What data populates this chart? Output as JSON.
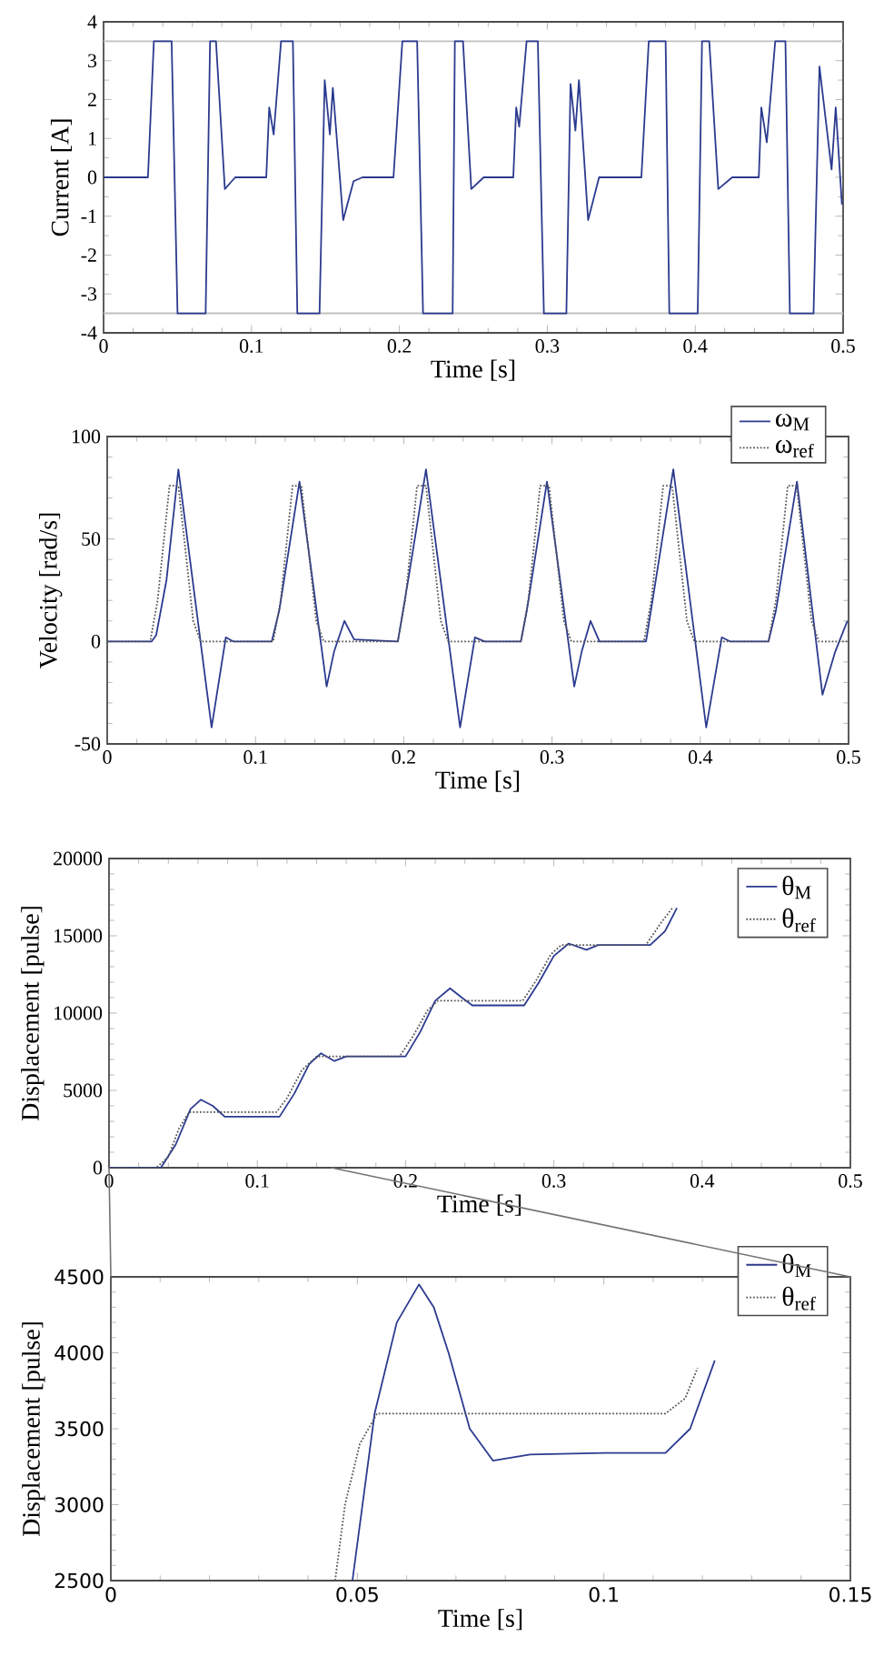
{
  "chart_data": [
    {
      "type": "line",
      "xlabel": "Time [s]",
      "ylabel": "Current [A]",
      "xlim": [
        0,
        0.5
      ],
      "ylim": [
        -4,
        4
      ],
      "xticks": [
        0,
        0.1,
        0.2,
        0.3,
        0.4,
        0.5
      ],
      "yticks": [
        -4,
        -3,
        -2,
        -1,
        0,
        1,
        2,
        3,
        4
      ],
      "ref_lines": [
        {
          "axis": "y",
          "value": 3.5,
          "color": "#c0c0c0"
        },
        {
          "axis": "y",
          "value": -3.5,
          "color": "#c0c0c0"
        }
      ],
      "series": [
        {
          "color": "#2b3a8f",
          "line_style": "solid",
          "x": [
            0,
            0.03,
            0.034,
            0.046,
            0.05,
            0.069,
            0.072,
            0.076,
            0.082,
            0.089,
            0.11,
            0.112,
            0.115,
            0.12,
            0.128,
            0.131,
            0.146,
            0.1495,
            0.153,
            0.155,
            0.162,
            0.169,
            0.175,
            0.196,
            0.202,
            0.212,
            0.216,
            0.236,
            0.2375,
            0.243,
            0.2486,
            0.257,
            0.277,
            0.279,
            0.281,
            0.286,
            0.2936,
            0.2977,
            0.3129,
            0.3157,
            0.319,
            0.3214,
            0.3276,
            0.335,
            0.3636,
            0.3686,
            0.38,
            0.3825,
            0.4017,
            0.4046,
            0.4095,
            0.4156,
            0.425,
            0.443,
            0.4447,
            0.4484,
            0.4541,
            0.461,
            0.464,
            0.48,
            0.484,
            0.4922,
            0.495,
            0.4992
          ],
          "values": [
            0,
            0,
            3.5,
            3.5,
            -3.5,
            -3.5,
            3.5,
            3.5,
            -0.3,
            0,
            0,
            1.8,
            1.1,
            3.5,
            3.5,
            -3.5,
            -3.5,
            2.5,
            1.1,
            2.3,
            -1.1,
            -0.1,
            0,
            0,
            3.5,
            3.5,
            -3.5,
            -3.5,
            3.5,
            3.5,
            -0.3,
            0,
            0,
            1.8,
            1.3,
            3.5,
            3.5,
            -3.5,
            -3.5,
            2.4,
            1.2,
            2.5,
            -1.1,
            0,
            0,
            3.5,
            3.5,
            -3.5,
            -3.5,
            3.5,
            3.5,
            -0.3,
            0,
            0,
            1.8,
            0.9,
            3.5,
            3.5,
            -3.5,
            -3.5,
            2.85,
            0.2,
            1.8,
            -0.7
          ]
        }
      ]
    },
    {
      "type": "line",
      "xlabel": "Time [s]",
      "ylabel": "Velocity [rad/s]",
      "xlim": [
        0,
        0.5
      ],
      "ylim": [
        -50,
        100
      ],
      "xticks": [
        0,
        0.1,
        0.2,
        0.3,
        0.4,
        0.5
      ],
      "yticks": [
        -50,
        0,
        50,
        100
      ],
      "legend": "top right",
      "series": [
        {
          "name": "ω$_{M}$",
          "color": "#2b3a8f",
          "line_style": "solid",
          "x": [
            0,
            0.03,
            0.033,
            0.04,
            0.048,
            0.0704,
            0.08,
            0.085,
            0.111,
            0.116,
            0.1297,
            0.148,
            0.153,
            0.16,
            0.1665,
            0.196,
            0.203,
            0.215,
            0.238,
            0.248,
            0.2545,
            0.279,
            0.283,
            0.2966,
            0.315,
            0.32,
            0.326,
            0.332,
            0.3634,
            0.37,
            0.3818,
            0.404,
            0.4145,
            0.42,
            0.446,
            0.451,
            0.4652,
            0.4824,
            0.491,
            0.4992
          ],
          "values": [
            0,
            0,
            3,
            30,
            84,
            -42,
            2,
            0,
            0,
            15,
            78,
            -22,
            -5,
            10,
            1,
            0,
            30,
            84,
            -42,
            2,
            0,
            0,
            15,
            78,
            -22,
            -5,
            10,
            0,
            0,
            30,
            84,
            -42,
            2,
            0,
            0,
            15,
            78,
            -26,
            -5,
            10
          ]
        },
        {
          "name": "ω$_{ref}$",
          "color": "#555555",
          "line_style": "dotted",
          "x": [
            0,
            0.029,
            0.034,
            0.042,
            0.048,
            0.058,
            0.063,
            0.112,
            0.117,
            0.125,
            0.131,
            0.141,
            0.146,
            0.196,
            0.201,
            0.209,
            0.215,
            0.225,
            0.23,
            0.279,
            0.284,
            0.292,
            0.298,
            0.308,
            0.313,
            0.362,
            0.367,
            0.375,
            0.381,
            0.391,
            0.396,
            0.446,
            0.451,
            0.459,
            0.465,
            0.475,
            0.48,
            0.5
          ],
          "values": [
            0,
            0,
            20,
            76,
            76,
            10,
            0,
            0,
            20,
            76,
            76,
            10,
            0,
            0,
            20,
            76,
            76,
            10,
            0,
            0,
            20,
            76,
            76,
            10,
            0,
            0,
            20,
            76,
            76,
            10,
            0,
            0,
            20,
            76,
            76,
            10,
            0,
            0
          ]
        }
      ]
    },
    {
      "type": "line",
      "xlabel": "Time [s]",
      "ylabel": "Displacement [pulse]",
      "xlim": [
        0,
        0.5
      ],
      "ylim": [
        0,
        20000
      ],
      "xticks": [
        0,
        0.1,
        0.2,
        0.3,
        0.4,
        0.5
      ],
      "yticks": [
        0,
        5000,
        10000,
        15000,
        20000
      ],
      "legend": "top right",
      "series": [
        {
          "name": "θ$_{M}$",
          "color": "#2b3a8f",
          "line_style": "solid",
          "x": [
            0,
            0.035,
            0.045,
            0.055,
            0.062,
            0.07,
            0.078,
            0.09,
            0.115,
            0.125,
            0.135,
            0.143,
            0.152,
            0.16,
            0.2,
            0.21,
            0.22,
            0.23,
            0.238,
            0.245,
            0.28,
            0.29,
            0.3,
            0.31,
            0.322,
            0.33,
            0.365,
            0.375,
            0.383
          ],
          "values": [
            0,
            0,
            1500,
            3800,
            4400,
            4000,
            3300,
            3300,
            3300,
            4800,
            6700,
            7400,
            6900,
            7200,
            7200,
            8800,
            10800,
            11600,
            11000,
            10500,
            10500,
            12000,
            13700,
            14500,
            14100,
            14400,
            14400,
            15300,
            16800
          ]
        },
        {
          "name": "θ$_{ref}$",
          "color": "#555555",
          "line_style": "dotted",
          "x": [
            0,
            0.032,
            0.04,
            0.047,
            0.054,
            0.113,
            0.12,
            0.13,
            0.14,
            0.196,
            0.205,
            0.215,
            0.222,
            0.279,
            0.288,
            0.298,
            0.305,
            0.362,
            0.372,
            0.38
          ],
          "values": [
            0,
            0,
            700,
            2500,
            3600,
            3600,
            4500,
            6300,
            7200,
            7200,
            8500,
            10200,
            10800,
            10800,
            12100,
            13800,
            14400,
            14400,
            15800,
            16800
          ]
        }
      ]
    },
    {
      "type": "line",
      "xlabel": "Time [s]",
      "ylabel": "Displacement [pulse]",
      "xlim": [
        0,
        0.15
      ],
      "ylim": [
        2500,
        4500
      ],
      "xticks": [
        0,
        0.05,
        0.1,
        0.15
      ],
      "yticks": [
        2500,
        3000,
        3500,
        4000,
        4500
      ],
      "legend": "top right",
      "series": [
        {
          "name": "θ$_{M}$",
          "color": "#2b3a8f",
          "line_style": "solid",
          "x": [
            0.049,
            0.0535,
            0.058,
            0.0625,
            0.0655,
            0.0685,
            0.0728,
            0.0775,
            0.085,
            0.1,
            0.1125,
            0.1175,
            0.1225
          ],
          "values": [
            2500,
            3600,
            4200,
            4450,
            4300,
            4000,
            3500,
            3290,
            3330,
            3340,
            3340,
            3500,
            3950
          ]
        },
        {
          "name": "θ$_{ref}$",
          "color": "#555555",
          "line_style": "dotted",
          "x": [
            0.0455,
            0.0475,
            0.0505,
            0.054,
            0.1125,
            0.1165,
            0.119
          ],
          "values": [
            2500,
            3000,
            3400,
            3600,
            3600,
            3700,
            3900
          ]
        }
      ]
    }
  ]
}
